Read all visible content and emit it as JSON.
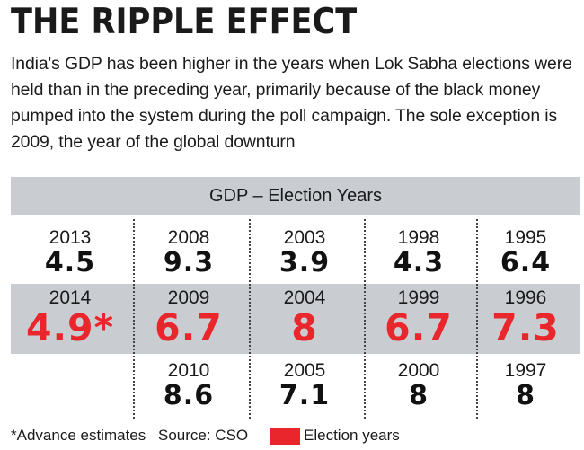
{
  "title": "THE RIPPLE EFFECT",
  "subtitle": "India's GDP has been higher in the years when Lok Sabha elections were held than in the preceding year, primarily because of the black money pumped into the system during the poll campaign. The sole exception is 2009, the year of the global downturn",
  "colors": {
    "highlight": "#e8262b",
    "band": "#c9cdd2",
    "text": "#111111"
  },
  "chart_data": {
    "type": "table",
    "title": "GDP – Election Years",
    "columns": [
      {
        "rows": [
          {
            "year": "2013",
            "value": "4.5"
          },
          {
            "year": "2014",
            "value": "4.9*",
            "election": true
          },
          null
        ]
      },
      {
        "rows": [
          {
            "year": "2008",
            "value": "9.3"
          },
          {
            "year": "2009",
            "value": "6.7",
            "election": true
          },
          {
            "year": "2010",
            "value": "8.6"
          }
        ]
      },
      {
        "rows": [
          {
            "year": "2003",
            "value": "3.9"
          },
          {
            "year": "2004",
            "value": "8",
            "election": true
          },
          {
            "year": "2005",
            "value": "7.1"
          }
        ]
      },
      {
        "rows": [
          {
            "year": "1998",
            "value": "4.3"
          },
          {
            "year": "1999",
            "value": "6.7",
            "election": true
          },
          {
            "year": "2000",
            "value": "8"
          }
        ]
      },
      {
        "rows": [
          {
            "year": "1995",
            "value": "6.4"
          },
          {
            "year": "1996",
            "value": "7.3",
            "election": true
          },
          {
            "year": "1997",
            "value": "8"
          }
        ]
      }
    ]
  },
  "footer": {
    "footnote": "*Advance estimates",
    "source": "Source: CSO",
    "legend_label": "Election years"
  }
}
